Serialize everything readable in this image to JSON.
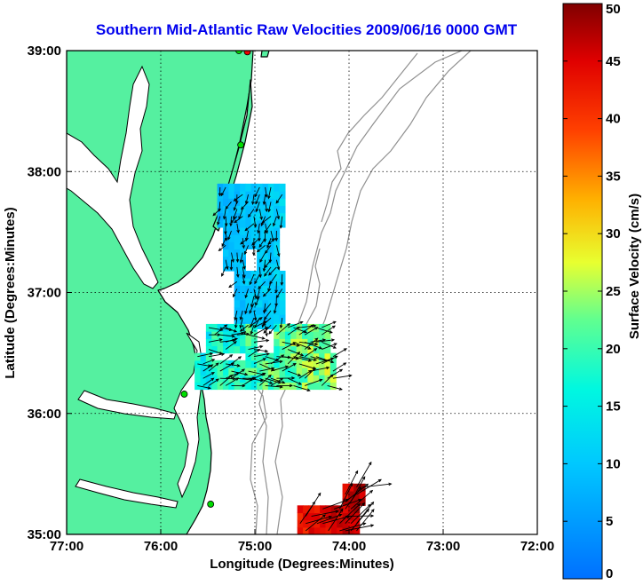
{
  "chart_data": {
    "type": "vector-field",
    "title": "Southern Mid-Atlantic Raw Velocities 2009/06/16 0000 GMT",
    "xlabel": "Longitude (Degrees:Minutes)",
    "ylabel": "Latitude (Degrees:Minutes)",
    "xlim": [
      -77,
      -72
    ],
    "ylim": [
      35,
      39
    ],
    "x_ticks": [
      {
        "value": -77,
        "label": "77:00"
      },
      {
        "value": -76,
        "label": "76:00"
      },
      {
        "value": -75,
        "label": "75:00"
      },
      {
        "value": -74,
        "label": "74:00"
      },
      {
        "value": -73,
        "label": "73:00"
      },
      {
        "value": -72,
        "label": "72:00"
      }
    ],
    "y_ticks": [
      {
        "value": 35,
        "label": "35:00"
      },
      {
        "value": 36,
        "label": "36:00"
      },
      {
        "value": 37,
        "label": "37:00"
      },
      {
        "value": 38,
        "label": "38:00"
      },
      {
        "value": 39,
        "label": "39:00"
      }
    ],
    "grid": true,
    "colorbar": {
      "label": "Surface Velocity (cm/s)",
      "range": [
        0,
        50
      ],
      "ticks": [
        {
          "value": 0,
          "label": "0"
        },
        {
          "value": 5,
          "label": "5"
        },
        {
          "value": 10,
          "label": "10"
        },
        {
          "value": 15,
          "label": "15"
        },
        {
          "value": 20,
          "label": "20"
        },
        {
          "value": 25,
          "label": "25"
        },
        {
          "value": 30,
          "label": "30"
        },
        {
          "value": 35,
          "label": "35"
        },
        {
          "value": 40,
          "label": "40"
        },
        {
          "value": 45,
          "label": "45"
        },
        {
          "value": 50,
          "label": "50"
        }
      ]
    },
    "colors": {
      "land": "#55f0a0",
      "coast": "#000000",
      "bathymetry": "#909090",
      "grid": "#000000",
      "title": "#0000ee",
      "station": "#00dd00",
      "station_alt": "#ee0000"
    },
    "stations": [
      {
        "lon": -75.08,
        "lat": 38.99,
        "kind": "alt"
      },
      {
        "lon": -75.17,
        "lat": 39.0,
        "kind": "normal"
      },
      {
        "lon": -75.15,
        "lat": 38.22,
        "kind": "normal"
      },
      {
        "lon": -75.75,
        "lat": 36.16,
        "kind": "normal"
      },
      {
        "lon": -75.47,
        "lat": 35.25,
        "kind": "normal"
      }
    ],
    "fields": [
      {
        "name": "north",
        "lon_range": [
          -75.4,
          -74.6
        ],
        "lat_range": [
          36.7,
          37.88
        ],
        "speed_range": [
          6,
          14
        ],
        "direction_deg": 200
      },
      {
        "name": "middle",
        "lon_range": [
          -75.7,
          -74.1
        ],
        "lat_range": [
          36.2,
          36.7
        ],
        "speed_range": [
          10,
          30
        ],
        "direction_deg": 80
      },
      {
        "name": "south",
        "lon_range": [
          -74.55,
          -73.8
        ],
        "lat_range": [
          35.0,
          35.37
        ],
        "speed_range": [
          40,
          50
        ],
        "direction_deg": 60
      }
    ]
  }
}
